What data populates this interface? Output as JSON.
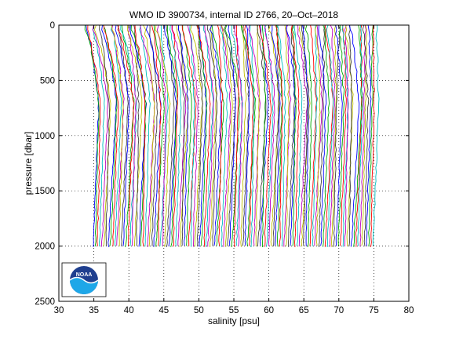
{
  "chart_data": {
    "type": "line",
    "title": "WMO ID 3900734, internal ID 2766, 20–Oct–2018",
    "xlabel": "salinity [psu]",
    "ylabel": "pressure [dbar]",
    "xlim": [
      30,
      80
    ],
    "ylim": [
      0,
      2500
    ],
    "y_reversed": true,
    "grid": "dotted",
    "xticks": [
      30,
      35,
      40,
      45,
      50,
      55,
      60,
      65,
      70,
      75,
      80
    ],
    "yticks": [
      0,
      500,
      1000,
      1500,
      2000,
      2500
    ],
    "profiles": {
      "description": "waterfall of salinity profiles, each successive profile offset by a constant",
      "count": 130,
      "first_bottom_salinity": 34.9,
      "offset_per_profile": 0.31,
      "surface_salinity_first": 34.0,
      "surface_salinity_last": 75.3,
      "max_pressure": 2010,
      "colors": [
        "#0000ff",
        "#00aa00",
        "#ff0000",
        "#00bfbf",
        "#bf00bf",
        "#bfbf00",
        "#404040"
      ]
    }
  },
  "logo": {
    "name": "NOAA",
    "text": "NOAA",
    "colors": {
      "top": "#1f3f8f",
      "bottom": "#1ea7e8",
      "wave": "#ffffff"
    }
  }
}
